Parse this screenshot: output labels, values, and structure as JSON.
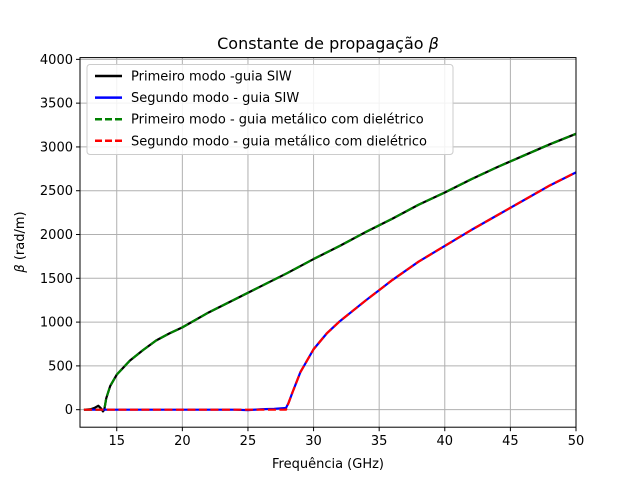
{
  "chart_data": {
    "type": "line",
    "title_prefix": "Constante de propagação ",
    "title_symbol": "β",
    "xlabel": "Frequência (GHz)",
    "ylabel_symbol": "β",
    "ylabel_units": " (rad/m)",
    "xlim": [
      12.2,
      50
    ],
    "ylim": [
      -200,
      4020
    ],
    "xticks": [
      15,
      20,
      25,
      30,
      35,
      40,
      45,
      50
    ],
    "yticks": [
      0,
      500,
      1000,
      1500,
      2000,
      2500,
      3000,
      3500,
      4000
    ],
    "grid": true,
    "legend_position": "top-left",
    "series": [
      {
        "name": "Primeiro modo -guia SIW",
        "color": "#000000",
        "style": "solid",
        "x": [
          12.5,
          13.0,
          13.3,
          13.6,
          13.8,
          13.95,
          14.05,
          14.2,
          14.5,
          15.0,
          16.0,
          17.0,
          18.0,
          19.0,
          20.0,
          22.0,
          24.0,
          26.0,
          28.0,
          30.0,
          32.0,
          34.0,
          36.0,
          38.0,
          40.0,
          42.0,
          44.0,
          46.0,
          48.0,
          50.0
        ],
        "y": [
          0,
          5,
          20,
          45,
          15,
          -20,
          0,
          130,
          270,
          400,
          560,
          680,
          790,
          870,
          940,
          1110,
          1260,
          1410,
          1560,
          1720,
          1870,
          2030,
          2180,
          2340,
          2480,
          2630,
          2770,
          2900,
          3030,
          3150
        ]
      },
      {
        "name": "Segundo modo - guia SIW",
        "color": "#0000ff",
        "style": "solid",
        "x": [
          12.5,
          15.0,
          20.0,
          24.0,
          25.0,
          26.0,
          27.0,
          27.5,
          27.9,
          28.1,
          28.4,
          29.0,
          30.0,
          31.0,
          32.0,
          34.0,
          36.0,
          38.0,
          40.0,
          42.0,
          44.0,
          46.0,
          48.0,
          50.0
        ],
        "y": [
          0,
          0,
          0,
          0,
          -5,
          5,
          10,
          15,
          20,
          80,
          200,
          430,
          690,
          870,
          1010,
          1250,
          1480,
          1690,
          1870,
          2050,
          2220,
          2390,
          2560,
          2710
        ]
      },
      {
        "name": "Primeiro modo - guia metálico com dielétrico",
        "color": "#008000",
        "style": "dashed",
        "x": [
          12.5,
          13.8,
          14.05,
          14.2,
          14.5,
          15.0,
          16.0,
          17.0,
          18.0,
          19.0,
          20.0,
          22.0,
          24.0,
          26.0,
          28.0,
          30.0,
          32.0,
          34.0,
          36.0,
          38.0,
          40.0,
          42.0,
          44.0,
          46.0,
          48.0,
          50.0
        ],
        "y": [
          0,
          0,
          0,
          130,
          270,
          400,
          560,
          680,
          790,
          870,
          940,
          1110,
          1260,
          1410,
          1560,
          1720,
          1870,
          2030,
          2180,
          2340,
          2480,
          2630,
          2770,
          2900,
          3030,
          3150
        ]
      },
      {
        "name": "Segundo modo - guia metálico com dielétrico",
        "color": "#ff0000",
        "style": "dashed",
        "x": [
          12.5,
          15.0,
          20.0,
          25.0,
          27.9,
          28.1,
          28.4,
          29.0,
          30.0,
          31.0,
          32.0,
          34.0,
          36.0,
          38.0,
          40.0,
          42.0,
          44.0,
          46.0,
          48.0,
          50.0
        ],
        "y": [
          0,
          0,
          0,
          0,
          0,
          80,
          200,
          430,
          690,
          870,
          1010,
          1250,
          1480,
          1690,
          1870,
          2050,
          2220,
          2390,
          2560,
          2710
        ]
      }
    ]
  }
}
